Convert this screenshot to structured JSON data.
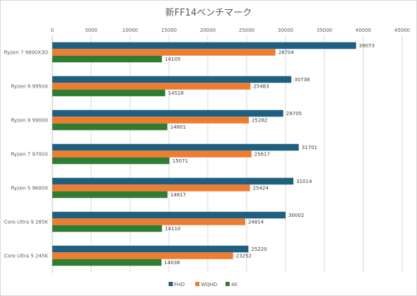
{
  "chart_data": {
    "type": "bar",
    "orientation": "horizontal",
    "title": "新FF14ベンチマーク",
    "xlim": [
      0,
      45000
    ],
    "xticks": [
      0,
      5000,
      10000,
      15000,
      20000,
      25000,
      30000,
      35000,
      40000,
      45000
    ],
    "x_axis_position": "top",
    "grid": true,
    "legend_position": "bottom",
    "categories": [
      "Ryzen 7 9800X3D",
      "Ryzen 9 9950X",
      "Ryzen 9 9900X",
      "Ryzen 7 9700X",
      "Ryzen 5 9600X",
      "Core Ultra 9 285K",
      "Core Ultra 5 245K"
    ],
    "series": [
      {
        "name": "FHD",
        "color": "#1f5f7f",
        "values": [
          39073,
          30738,
          29705,
          31701,
          31014,
          30002,
          25220
        ]
      },
      {
        "name": "WQHD",
        "color": "#ed7d31",
        "values": [
          28704,
          25483,
          25282,
          25617,
          25424,
          24814,
          23252
        ]
      },
      {
        "name": "4K",
        "color": "#2e7d32",
        "values": [
          14105,
          14518,
          14801,
          15071,
          14817,
          14110,
          14038
        ]
      }
    ]
  }
}
